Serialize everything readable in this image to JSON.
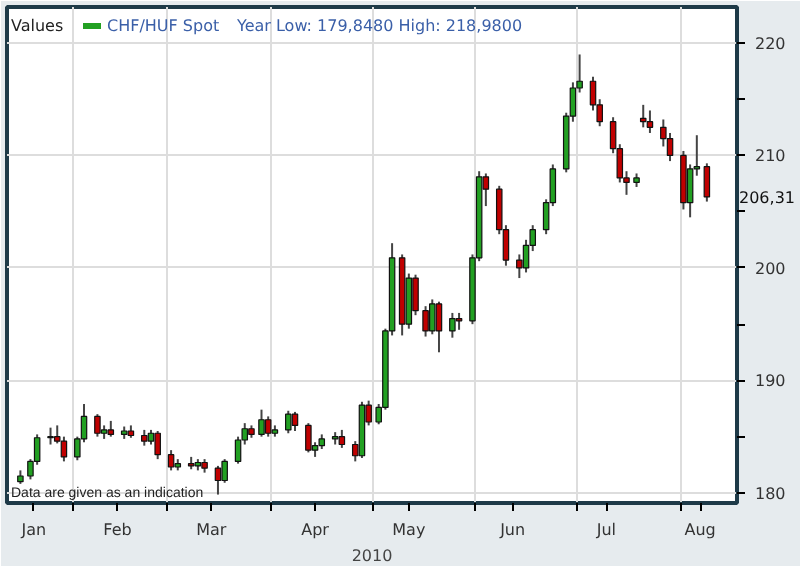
{
  "chart_data": {
    "type": "candlestick",
    "title": "Values",
    "subtitle": "Year Low: 179,8480 High: 218,9800",
    "xlabel": "2010",
    "annotations": [
      "Data are given as an indication",
      "206,31"
    ],
    "legend": "top left",
    "grid": true,
    "x": [
      "2010-01-16",
      "2010-01-19",
      "2010-01-21",
      "2010-01-25",
      "2010-01-27",
      "2010-01-29",
      "2010-02-02",
      "2010-02-04",
      "2010-02-08",
      "2010-02-10",
      "2010-02-12",
      "2010-02-16",
      "2010-02-18",
      "2010-02-22",
      "2010-02-24",
      "2010-02-26",
      "2010-03-02",
      "2010-03-04",
      "2010-03-08",
      "2010-03-10",
      "2010-03-12",
      "2010-03-16",
      "2010-03-18",
      "2010-03-22",
      "2010-03-24",
      "2010-03-26",
      "2010-03-29",
      "2010-03-31",
      "2010-04-02",
      "2010-04-06",
      "2010-04-08",
      "2010-04-12",
      "2010-04-14",
      "2010-04-16",
      "2010-04-20",
      "2010-04-22",
      "2010-04-26",
      "2010-04-28",
      "2010-04-30",
      "2010-05-03",
      "2010-05-05",
      "2010-05-07",
      "2010-05-10",
      "2010-05-12",
      "2010-05-14",
      "2010-05-17",
      "2010-05-19",
      "2010-05-21",
      "2010-05-25",
      "2010-05-27",
      "2010-05-31",
      "2010-06-02",
      "2010-06-04",
      "2010-06-08",
      "2010-06-10",
      "2010-06-14",
      "2010-06-16",
      "2010-06-18",
      "2010-06-22",
      "2010-06-24",
      "2010-06-28",
      "2010-06-30",
      "2010-07-02",
      "2010-07-06",
      "2010-07-08",
      "2010-07-12",
      "2010-07-14",
      "2010-07-16",
      "2010-07-19",
      "2010-07-21",
      "2010-07-23",
      "2010-07-27",
      "2010-07-29",
      "2010-08-02",
      "2010-08-04",
      "2010-08-06",
      "2010-08-09"
    ],
    "series": [
      {
        "name": "CHF/HUF Spot",
        "colors": [
          "#22a022",
          "#22a022",
          "#22a022",
          "#22a022",
          "#c00000",
          "#c00000",
          "#22a022",
          "#22a022",
          "#c00000",
          "#22a022",
          "#c00000",
          "#22a022",
          "#c00000",
          "#c00000",
          "#22a022",
          "#c00000",
          "#c00000",
          "#22a022",
          "#c00000",
          "#22a022",
          "#c00000",
          "#c00000",
          "#22a022",
          "#22a022",
          "#22a022",
          "#c00000",
          "#22a022",
          "#c00000",
          "#22a022",
          "#22a022",
          "#c00000",
          "#c00000",
          "#22a022",
          "#22a022",
          "#22a022",
          "#c00000",
          "#c00000",
          "#22a022",
          "#c00000",
          "#22a022",
          "#22a022",
          "#22a022",
          "#c00000",
          "#22a022",
          "#c00000",
          "#c00000",
          "#22a022",
          "#c00000",
          "#22a022",
          "#c00000",
          "#22a022",
          "#22a022",
          "#c00000",
          "#c00000",
          "#c00000",
          "#c00000",
          "#22a022",
          "#22a022",
          "#22a022",
          "#22a022",
          "#22a022",
          "#22a022",
          "#22a022",
          "#c00000",
          "#c00000",
          "#c00000",
          "#c00000",
          "#c00000",
          "#22a022",
          "#c00000",
          "#c00000",
          "#c00000",
          "#c00000",
          "#c00000",
          "#22a022",
          "#22a022",
          "#c00000"
        ],
        "ohlc": [
          [
            181.0,
            182.0,
            180.8,
            181.5
          ],
          [
            181.5,
            183.0,
            181.2,
            182.8
          ],
          [
            182.8,
            185.2,
            182.5,
            184.9
          ],
          [
            184.9,
            185.8,
            184.3,
            185.0
          ],
          [
            185.0,
            186.0,
            184.4,
            184.6
          ],
          [
            184.6,
            185.0,
            182.8,
            183.2
          ],
          [
            183.2,
            185.0,
            182.9,
            184.8
          ],
          [
            184.8,
            187.9,
            184.5,
            186.8
          ],
          [
            186.8,
            187.0,
            185.0,
            185.3
          ],
          [
            185.3,
            186.0,
            184.8,
            185.6
          ],
          [
            185.6,
            186.4,
            185.0,
            185.2
          ],
          [
            185.2,
            185.9,
            184.8,
            185.5
          ],
          [
            185.5,
            186.0,
            184.9,
            185.1
          ],
          [
            185.1,
            185.6,
            184.2,
            184.6
          ],
          [
            184.6,
            185.6,
            184.3,
            185.3
          ],
          [
            185.3,
            185.5,
            183.0,
            183.4
          ],
          [
            183.4,
            183.8,
            182.0,
            182.3
          ],
          [
            182.3,
            183.0,
            182.0,
            182.6
          ],
          [
            182.6,
            183.2,
            182.1,
            182.4
          ],
          [
            182.4,
            183.0,
            182.0,
            182.7
          ],
          [
            182.7,
            183.0,
            181.8,
            182.2
          ],
          [
            182.2,
            182.4,
            179.85,
            181.1
          ],
          [
            181.1,
            183.0,
            180.9,
            182.8
          ],
          [
            182.8,
            185.0,
            182.6,
            184.7
          ],
          [
            184.7,
            186.2,
            184.3,
            185.7
          ],
          [
            185.7,
            186.0,
            184.9,
            185.2
          ],
          [
            185.2,
            187.4,
            185.0,
            186.5
          ],
          [
            186.5,
            186.8,
            185.0,
            185.3
          ],
          [
            185.3,
            186.0,
            185.0,
            185.6
          ],
          [
            185.6,
            187.3,
            185.3,
            187.0
          ],
          [
            187.0,
            187.2,
            185.5,
            186.0
          ],
          [
            186.0,
            186.2,
            183.6,
            183.8
          ],
          [
            183.8,
            184.5,
            183.2,
            184.2
          ],
          [
            184.2,
            185.2,
            183.9,
            184.8
          ],
          [
            184.8,
            185.4,
            184.3,
            185.0
          ],
          [
            185.0,
            185.6,
            184.0,
            184.3
          ],
          [
            184.3,
            184.6,
            182.8,
            183.3
          ],
          [
            183.3,
            188.1,
            183.1,
            187.8
          ],
          [
            187.8,
            188.2,
            186.0,
            186.3
          ],
          [
            186.3,
            187.9,
            186.1,
            187.6
          ],
          [
            187.6,
            194.6,
            187.4,
            194.4
          ],
          [
            194.4,
            202.2,
            194.0,
            200.9
          ],
          [
            200.9,
            201.2,
            194.0,
            195.0
          ],
          [
            195.0,
            199.5,
            194.6,
            199.1
          ],
          [
            199.1,
            199.4,
            195.8,
            196.2
          ],
          [
            196.2,
            196.6,
            193.9,
            194.4
          ],
          [
            194.4,
            197.2,
            194.1,
            196.8
          ],
          [
            196.8,
            197.0,
            192.5,
            194.4
          ],
          [
            194.4,
            196.0,
            193.8,
            195.5
          ],
          [
            195.5,
            196.0,
            194.5,
            195.3
          ],
          [
            195.3,
            201.2,
            195.0,
            200.9
          ],
          [
            200.9,
            208.6,
            200.6,
            208.1
          ],
          [
            208.1,
            208.4,
            205.5,
            207.0
          ],
          [
            207.0,
            207.3,
            203.0,
            203.4
          ],
          [
            203.4,
            203.8,
            200.2,
            200.7
          ],
          [
            200.7,
            201.2,
            199.1,
            200.0
          ],
          [
            200.0,
            202.5,
            199.6,
            202.0
          ],
          [
            202.0,
            203.8,
            201.5,
            203.4
          ],
          [
            203.4,
            206.1,
            203.0,
            205.8
          ],
          [
            205.8,
            209.2,
            205.5,
            208.8
          ],
          [
            208.8,
            213.8,
            208.5,
            213.5
          ],
          [
            213.5,
            216.5,
            213.0,
            216.0
          ],
          [
            216.0,
            218.98,
            215.6,
            216.6
          ],
          [
            216.6,
            217.0,
            214.0,
            214.5
          ],
          [
            214.5,
            215.0,
            212.6,
            213.0
          ],
          [
            213.0,
            213.4,
            210.2,
            210.6
          ],
          [
            210.6,
            211.0,
            207.6,
            208.0
          ],
          [
            208.0,
            208.6,
            206.5,
            207.6
          ],
          [
            207.6,
            208.4,
            207.2,
            208.0
          ],
          [
            213.3,
            214.5,
            212.5,
            213.0
          ],
          [
            213.0,
            214.0,
            212.0,
            212.5
          ],
          [
            212.5,
            213.2,
            210.8,
            211.5
          ],
          [
            211.5,
            212.0,
            209.5,
            210.0
          ],
          [
            210.0,
            210.4,
            205.2,
            205.8
          ],
          [
            205.8,
            209.2,
            204.5,
            208.8
          ],
          [
            208.8,
            211.8,
            208.2,
            209.0
          ],
          [
            209.0,
            209.3,
            205.9,
            206.31
          ]
        ]
      }
    ],
    "xlim": [
      "2010-01-12",
      "2010-08-18"
    ],
    "xticks": [
      {
        "value": "2010-01-20",
        "label": "Jan"
      },
      {
        "value": "2010-02-01",
        "label": null
      },
      {
        "value": "2010-02-14",
        "label": "Feb"
      },
      {
        "value": "2010-03-01",
        "label": null
      },
      {
        "value": "2010-03-14",
        "label": "Mar"
      },
      {
        "value": "2010-04-01",
        "label": null
      },
      {
        "value": "2010-04-14",
        "label": "Apr"
      },
      {
        "value": "2010-05-01",
        "label": null
      },
      {
        "value": "2010-05-12",
        "label": "May"
      },
      {
        "value": "2010-06-01",
        "label": null
      },
      {
        "value": "2010-06-12",
        "label": "Jun"
      },
      {
        "value": "2010-07-01",
        "label": null
      },
      {
        "value": "2010-07-10",
        "label": "Jul"
      },
      {
        "value": "2010-08-01",
        "label": null
      },
      {
        "value": "2010-08-07",
        "label": "Aug"
      }
    ],
    "ylim": [
      179.1,
      223.2
    ],
    "yticks": [
      180,
      {
        "value": 185,
        "label": null
      },
      190,
      {
        "value": 195,
        "label": null
      },
      200,
      {
        "value": 205,
        "label": null
      },
      210,
      {
        "value": 215,
        "label": null
      },
      220
    ]
  }
}
